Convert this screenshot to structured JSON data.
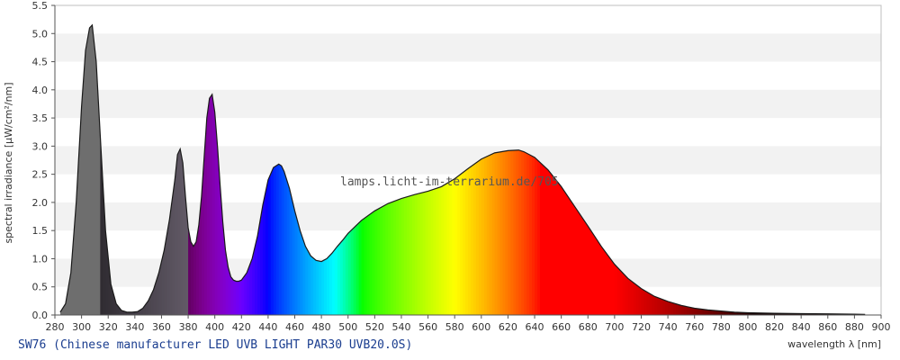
{
  "caption": "SW76 (Chinese manufacturer LED UVB LIGHT PAR30 UVB20.0S)",
  "watermark": "lamps.licht-im-terrarium.de/705",
  "chart_data": {
    "type": "area",
    "xlabel": "wavelength λ [nm]",
    "ylabel": "spectral irradiance [µW/cm²/nm]",
    "xlim": [
      280,
      900
    ],
    "ylim": [
      0,
      5.5
    ],
    "x_ticks": [
      280,
      300,
      320,
      340,
      360,
      380,
      400,
      420,
      440,
      460,
      480,
      500,
      520,
      540,
      560,
      580,
      600,
      620,
      640,
      660,
      680,
      700,
      720,
      740,
      760,
      780,
      800,
      820,
      840,
      860,
      880,
      900
    ],
    "y_ticks": [
      "0.0",
      "0.5",
      "1.0",
      "1.5",
      "2.0",
      "2.5",
      "3.0",
      "3.5",
      "4.0",
      "4.5",
      "5.0",
      "5.5"
    ],
    "grid": "horizontal bands",
    "fill": "visible spectrum colors",
    "series": [
      {
        "x": [
          284,
          288,
          292,
          296,
          300,
          303,
          306,
          308,
          311,
          314,
          318,
          322,
          326,
          330,
          334,
          338,
          342,
          346,
          350,
          354,
          358,
          362,
          366,
          370,
          372,
          374,
          376,
          378,
          380,
          382,
          384,
          386,
          388,
          390,
          392,
          394,
          396,
          398,
          400,
          402,
          404,
          406,
          408,
          410,
          412,
          414,
          416,
          418,
          420,
          424,
          428,
          432,
          436,
          440,
          444,
          448,
          450,
          452,
          456,
          460,
          464,
          468,
          472,
          476,
          480,
          484,
          488,
          492,
          496,
          500,
          510,
          520,
          530,
          540,
          550,
          560,
          570,
          580,
          590,
          600,
          610,
          620,
          628,
          632,
          640,
          650,
          660,
          670,
          680,
          690,
          700,
          710,
          720,
          730,
          740,
          750,
          760,
          770,
          780,
          790,
          800,
          820,
          840,
          860,
          880,
          888
        ],
        "y": [
          0.05,
          0.2,
          0.75,
          2.0,
          3.7,
          4.7,
          5.1,
          5.15,
          4.5,
          3.2,
          1.5,
          0.55,
          0.2,
          0.08,
          0.05,
          0.05,
          0.06,
          0.12,
          0.25,
          0.45,
          0.75,
          1.15,
          1.7,
          2.4,
          2.85,
          2.95,
          2.7,
          2.1,
          1.55,
          1.3,
          1.22,
          1.3,
          1.6,
          2.1,
          2.8,
          3.5,
          3.85,
          3.92,
          3.6,
          3.0,
          2.3,
          1.65,
          1.15,
          0.85,
          0.68,
          0.62,
          0.6,
          0.6,
          0.62,
          0.75,
          1.0,
          1.4,
          1.95,
          2.4,
          2.62,
          2.68,
          2.65,
          2.55,
          2.25,
          1.85,
          1.5,
          1.22,
          1.05,
          0.97,
          0.95,
          1.0,
          1.1,
          1.22,
          1.33,
          1.45,
          1.68,
          1.85,
          1.98,
          2.07,
          2.14,
          2.2,
          2.28,
          2.42,
          2.6,
          2.77,
          2.88,
          2.92,
          2.93,
          2.9,
          2.8,
          2.58,
          2.28,
          1.93,
          1.58,
          1.22,
          0.9,
          0.65,
          0.47,
          0.33,
          0.24,
          0.17,
          0.12,
          0.09,
          0.07,
          0.05,
          0.04,
          0.03,
          0.025,
          0.02,
          0.015,
          0.01
        ]
      }
    ]
  }
}
